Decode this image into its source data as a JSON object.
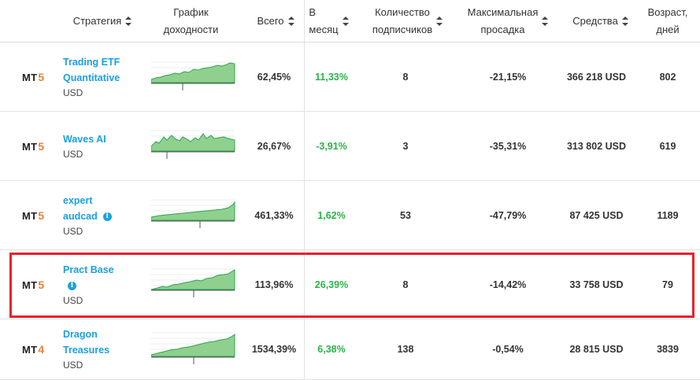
{
  "columns": {
    "strategy": "Стратегия",
    "chart": [
      "График",
      "доходности"
    ],
    "total": "Всего",
    "month": [
      "В",
      "месяц"
    ],
    "subscribers": [
      "Количество",
      "подписчиков"
    ],
    "drawdown": [
      "Максимальная",
      "просадка"
    ],
    "funds": "Средства",
    "age": [
      "Возраст,",
      "дней"
    ]
  },
  "rows": [
    {
      "platform": "MT",
      "platform_version": "5",
      "name_lines": [
        "Trading ETF",
        "Quantitative"
      ],
      "currency": "USD",
      "info_icon": false,
      "total": "62,45%",
      "month": "11,33%",
      "subscribers": "8",
      "drawdown": "-21,15%",
      "funds": "366 218 USD",
      "age": "802",
      "month_color": "#2ab348"
    },
    {
      "platform": "MT",
      "platform_version": "5",
      "name_lines": [
        "Waves AI"
      ],
      "currency": "USD",
      "info_icon": false,
      "total": "26,67%",
      "month": "-3,91%",
      "subscribers": "3",
      "drawdown": "-35,31%",
      "funds": "313 802 USD",
      "age": "619",
      "month_color": "#2ab348"
    },
    {
      "platform": "MT",
      "platform_version": "5",
      "name_lines": [
        "expert",
        "audcad"
      ],
      "currency": "USD",
      "info_icon": true,
      "total": "461,33%",
      "month": "1,62%",
      "subscribers": "53",
      "drawdown": "-47,79%",
      "funds": "87 425 USD",
      "age": "1189",
      "month_color": "#2ab348"
    },
    {
      "platform": "MT",
      "platform_version": "5",
      "name_lines": [
        "Pract Base"
      ],
      "currency": "USD",
      "info_icon": true,
      "total": "113,96%",
      "month": "26,39%",
      "subscribers": "8",
      "drawdown": "-14,42%",
      "funds": "33 758 USD",
      "age": "79",
      "month_color": "#2ab348"
    },
    {
      "platform": "MT",
      "platform_version": "4",
      "name_lines": [
        "Dragon",
        "Treasures"
      ],
      "currency": "USD",
      "info_icon": false,
      "total": "1534,39%",
      "month": "6,38%",
      "subscribers": "138",
      "drawdown": "-0,54%",
      "funds": "28 815 USD",
      "age": "3839",
      "month_color": "#2ab348"
    }
  ],
  "highlight_color": "#e8202a",
  "accent_link": "#1aa0e0",
  "icons": {
    "sort": "sort-arrows-icon",
    "info": "info-icon"
  }
}
